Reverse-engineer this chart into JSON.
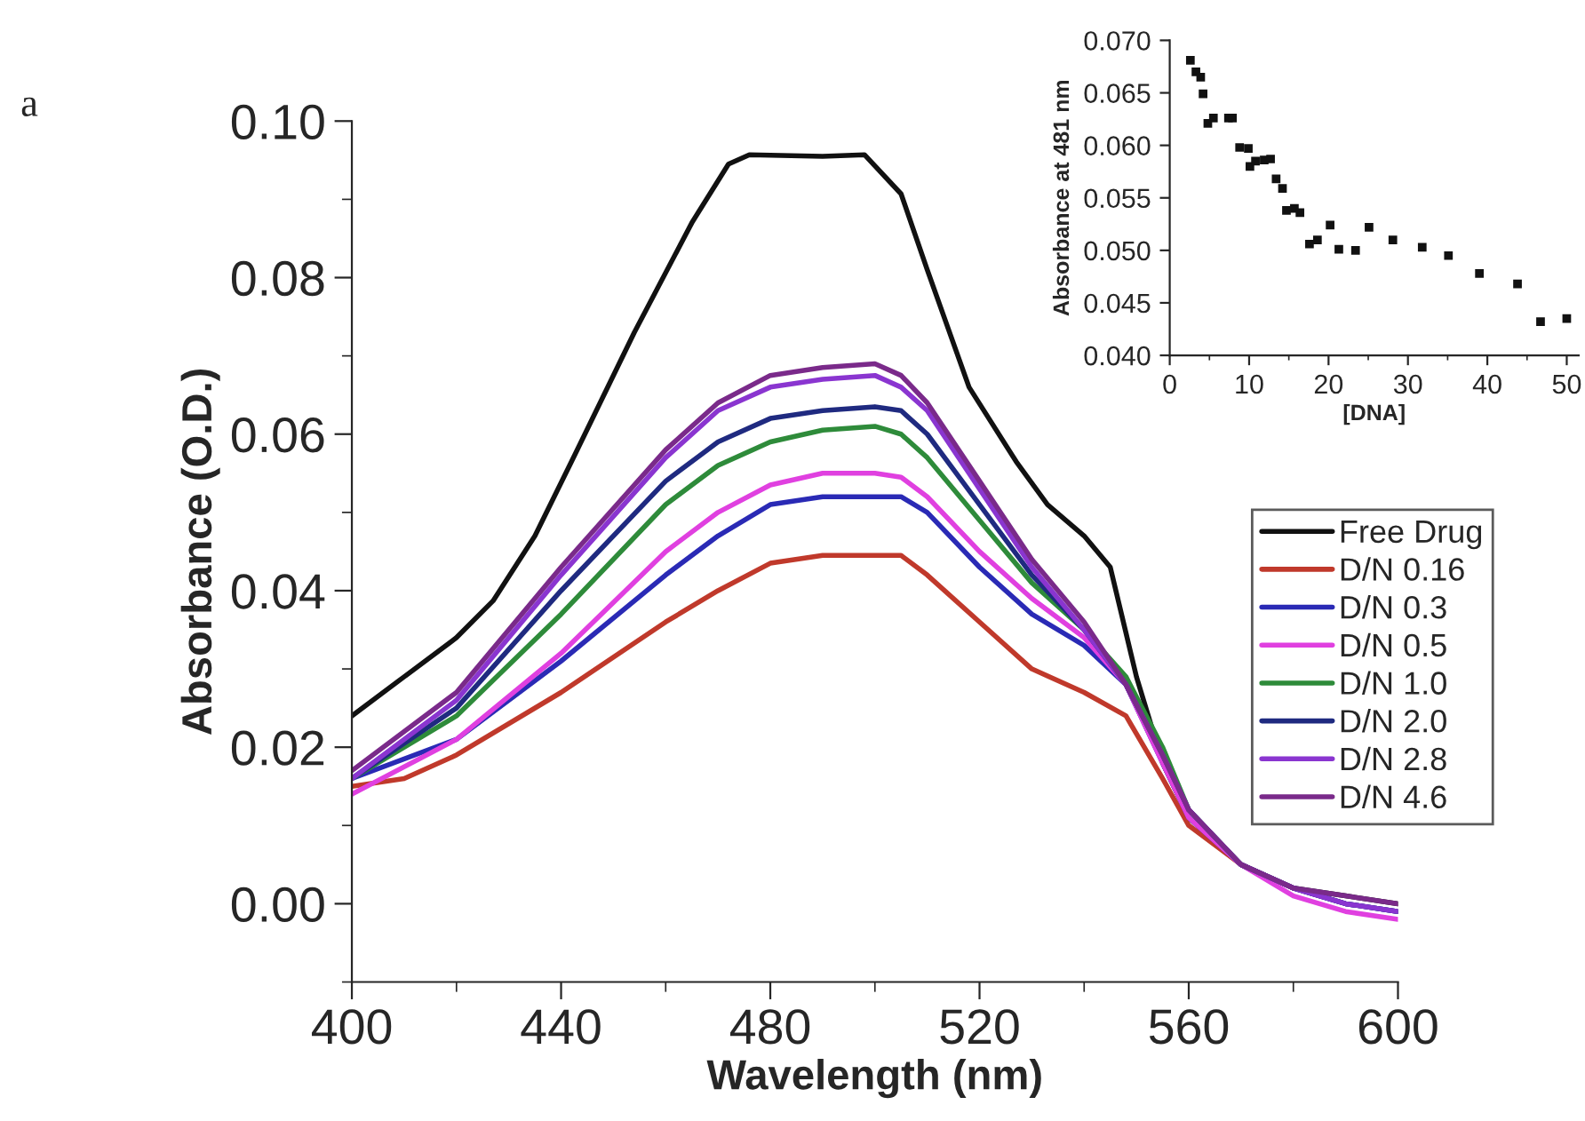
{
  "chart_data": [
    {
      "type": "line",
      "xlabel": "Wavelength (nm)",
      "ylabel": "Absorbance (O.D.)",
      "annotations": [
        "a"
      ],
      "xlim": [
        400,
        600
      ],
      "xticks": [
        400,
        {
          "value": 420,
          "label": null
        },
        440,
        {
          "value": 460,
          "label": null
        },
        480,
        {
          "value": 500,
          "label": null
        },
        520,
        {
          "value": 540,
          "label": null
        },
        560,
        {
          "value": 580,
          "label": null
        },
        600
      ],
      "ylim": [
        -0.01,
        0.1
      ],
      "yticks": [
        {
          "value": -0.01,
          "label": null
        },
        {
          "value": 0.0,
          "label": "0.00"
        },
        {
          "value": 0.01,
          "label": null
        },
        {
          "value": 0.02,
          "label": "0.02"
        },
        {
          "value": 0.03,
          "label": null
        },
        {
          "value": 0.04,
          "label": "0.04"
        },
        {
          "value": 0.05,
          "label": null
        },
        {
          "value": 0.06,
          "label": "0.06"
        },
        {
          "value": 0.07,
          "label": null
        },
        {
          "value": 0.08,
          "label": "0.08"
        },
        {
          "value": 0.09,
          "label": null
        },
        {
          "value": 0.1,
          "label": "0.10"
        }
      ],
      "grid": false,
      "legend": "right",
      "marker": "none",
      "line_style": "solid",
      "series": [
        {
          "name": "Free Drug",
          "color": "#111111",
          "x": [
            400,
            410,
            420,
            427,
            435,
            442,
            454,
            465,
            472,
            476,
            490,
            498,
            505,
            510,
            518,
            527,
            533,
            540,
            545,
            550,
            555,
            560,
            570,
            580,
            590,
            600
          ],
          "values": [
            0.024,
            0.029,
            0.034,
            0.0387,
            0.047,
            0.0565,
            0.073,
            0.087,
            0.0945,
            0.0957,
            0.0955,
            0.0957,
            0.0907,
            0.081,
            0.066,
            0.0565,
            0.051,
            0.047,
            0.043,
            0.029,
            0.018,
            0.011,
            0.005,
            0.002,
            0.001,
            0.0
          ]
        },
        {
          "name": "D/N 0.16",
          "color": "#c0392b",
          "x": [
            400,
            410,
            420,
            440,
            460,
            470,
            480,
            490,
            500,
            505,
            510,
            520,
            530,
            540,
            548,
            555,
            560,
            570,
            580
          ],
          "values": [
            0.015,
            0.016,
            0.019,
            0.027,
            0.036,
            0.04,
            0.0435,
            0.0445,
            0.0445,
            0.0445,
            0.042,
            0.036,
            0.03,
            0.027,
            0.024,
            0.016,
            0.01,
            0.005,
            0.002
          ]
        },
        {
          "name": "D/N 0.3",
          "color": "#2a2ab5",
          "x": [
            400,
            420,
            440,
            460,
            470,
            480,
            490,
            500,
            505,
            510,
            520,
            530,
            540,
            548,
            555,
            560,
            570,
            580,
            590,
            600
          ],
          "values": [
            0.016,
            0.021,
            0.031,
            0.042,
            0.047,
            0.051,
            0.052,
            0.052,
            0.052,
            0.05,
            0.043,
            0.037,
            0.033,
            0.028,
            0.018,
            0.011,
            0.005,
            0.002,
            0.0,
            -0.001
          ]
        },
        {
          "name": "D/N 0.5",
          "color": "#e040e0",
          "x": [
            400,
            420,
            440,
            460,
            470,
            480,
            490,
            500,
            505,
            510,
            520,
            530,
            540,
            548,
            555,
            560,
            570,
            580,
            590,
            600
          ],
          "values": [
            0.014,
            0.021,
            0.032,
            0.045,
            0.05,
            0.0535,
            0.055,
            0.055,
            0.0545,
            0.052,
            0.045,
            0.039,
            0.034,
            0.028,
            0.018,
            0.011,
            0.005,
            0.001,
            -0.001,
            -0.002
          ]
        },
        {
          "name": "D/N 1.0",
          "color": "#2e8b3a",
          "x": [
            400,
            420,
            440,
            460,
            470,
            480,
            490,
            500,
            505,
            510,
            520,
            530,
            540,
            548,
            555,
            560,
            570
          ],
          "values": [
            0.016,
            0.024,
            0.037,
            0.051,
            0.056,
            0.059,
            0.0605,
            0.061,
            0.06,
            0.057,
            0.049,
            0.041,
            0.035,
            0.029,
            0.02,
            0.012,
            0.005
          ]
        },
        {
          "name": "D/N 2.0",
          "color": "#1f2a80",
          "x": [
            400,
            420,
            440,
            460,
            470,
            480,
            490,
            500,
            505,
            510,
            520,
            530,
            540,
            548,
            555,
            560,
            570,
            580,
            590,
            600
          ],
          "values": [
            0.016,
            0.025,
            0.04,
            0.054,
            0.059,
            0.062,
            0.063,
            0.0635,
            0.063,
            0.06,
            0.051,
            0.042,
            0.035,
            0.028,
            0.019,
            0.012,
            0.005,
            0.002,
            0.0,
            -0.001
          ]
        },
        {
          "name": "D/N 2.8",
          "color": "#8a35d0",
          "x": [
            400,
            420,
            440,
            460,
            470,
            480,
            490,
            500,
            505,
            510,
            520,
            530,
            540,
            548,
            555,
            560,
            570,
            580,
            590,
            600
          ],
          "values": [
            0.016,
            0.026,
            0.042,
            0.057,
            0.063,
            0.066,
            0.067,
            0.0675,
            0.066,
            0.063,
            0.053,
            0.043,
            0.035,
            0.028,
            0.019,
            0.012,
            0.005,
            0.002,
            0.0,
            -0.001
          ]
        },
        {
          "name": "D/N 4.6",
          "color": "#7a2a8a",
          "x": [
            400,
            420,
            440,
            460,
            470,
            480,
            490,
            500,
            505,
            510,
            520,
            530,
            540,
            548,
            555,
            560,
            570,
            580,
            590,
            600
          ],
          "values": [
            0.017,
            0.027,
            0.043,
            0.058,
            0.064,
            0.0675,
            0.0685,
            0.069,
            0.0675,
            0.064,
            0.054,
            0.044,
            0.036,
            0.028,
            0.019,
            0.012,
            0.005,
            0.002,
            0.001,
            0.0
          ]
        }
      ]
    },
    {
      "type": "scatter",
      "xlabel": "[DNA]",
      "ylabel": "Absorbance at 481 nm",
      "xlim": [
        0,
        51.5
      ],
      "xticks": [
        0,
        {
          "value": 5,
          "label": null
        },
        10,
        {
          "value": 15,
          "label": null
        },
        20,
        {
          "value": 25,
          "label": null
        },
        30,
        {
          "value": 35,
          "label": null
        },
        40,
        {
          "value": 45,
          "label": null
        },
        50
      ],
      "ylim": [
        0.04,
        0.07
      ],
      "yticks": [
        {
          "value": 0.04,
          "label": "0.040"
        },
        {
          "value": 0.045,
          "label": "0.045"
        },
        {
          "value": 0.05,
          "label": "0.050"
        },
        {
          "value": 0.055,
          "label": "0.055"
        },
        {
          "value": 0.06,
          "label": "0.060"
        },
        {
          "value": 0.065,
          "label": "0.065"
        },
        {
          "value": 0.07,
          "label": "0.070"
        }
      ],
      "grid": false,
      "legend": false,
      "marker": "square",
      "series": [
        {
          "color": "#111111",
          "x": [
            2.6,
            3.3,
            3.9,
            4.2,
            4.8,
            5.5,
            7.4,
            7.9,
            8.8,
            9.9,
            10.1,
            10.8,
            11.9,
            12.7,
            13.4,
            14.2,
            14.7,
            15.7,
            16.4,
            17.6,
            18.6,
            20.2,
            21.3,
            23.4,
            25.1,
            28.1,
            31.8,
            35.1,
            39.0,
            43.8,
            46.7,
            50.0
          ],
          "values": [
            0.0681,
            0.067,
            0.0665,
            0.0649,
            0.0621,
            0.0626,
            0.0626,
            0.0626,
            0.0598,
            0.0597,
            0.058,
            0.0585,
            0.0586,
            0.0587,
            0.0568,
            0.0559,
            0.0538,
            0.054,
            0.0536,
            0.0506,
            0.051,
            0.0524,
            0.0501,
            0.05,
            0.0522,
            0.051,
            0.0503,
            0.0495,
            0.0478,
            0.0468,
            0.0432,
            0.0435
          ]
        }
      ]
    }
  ]
}
